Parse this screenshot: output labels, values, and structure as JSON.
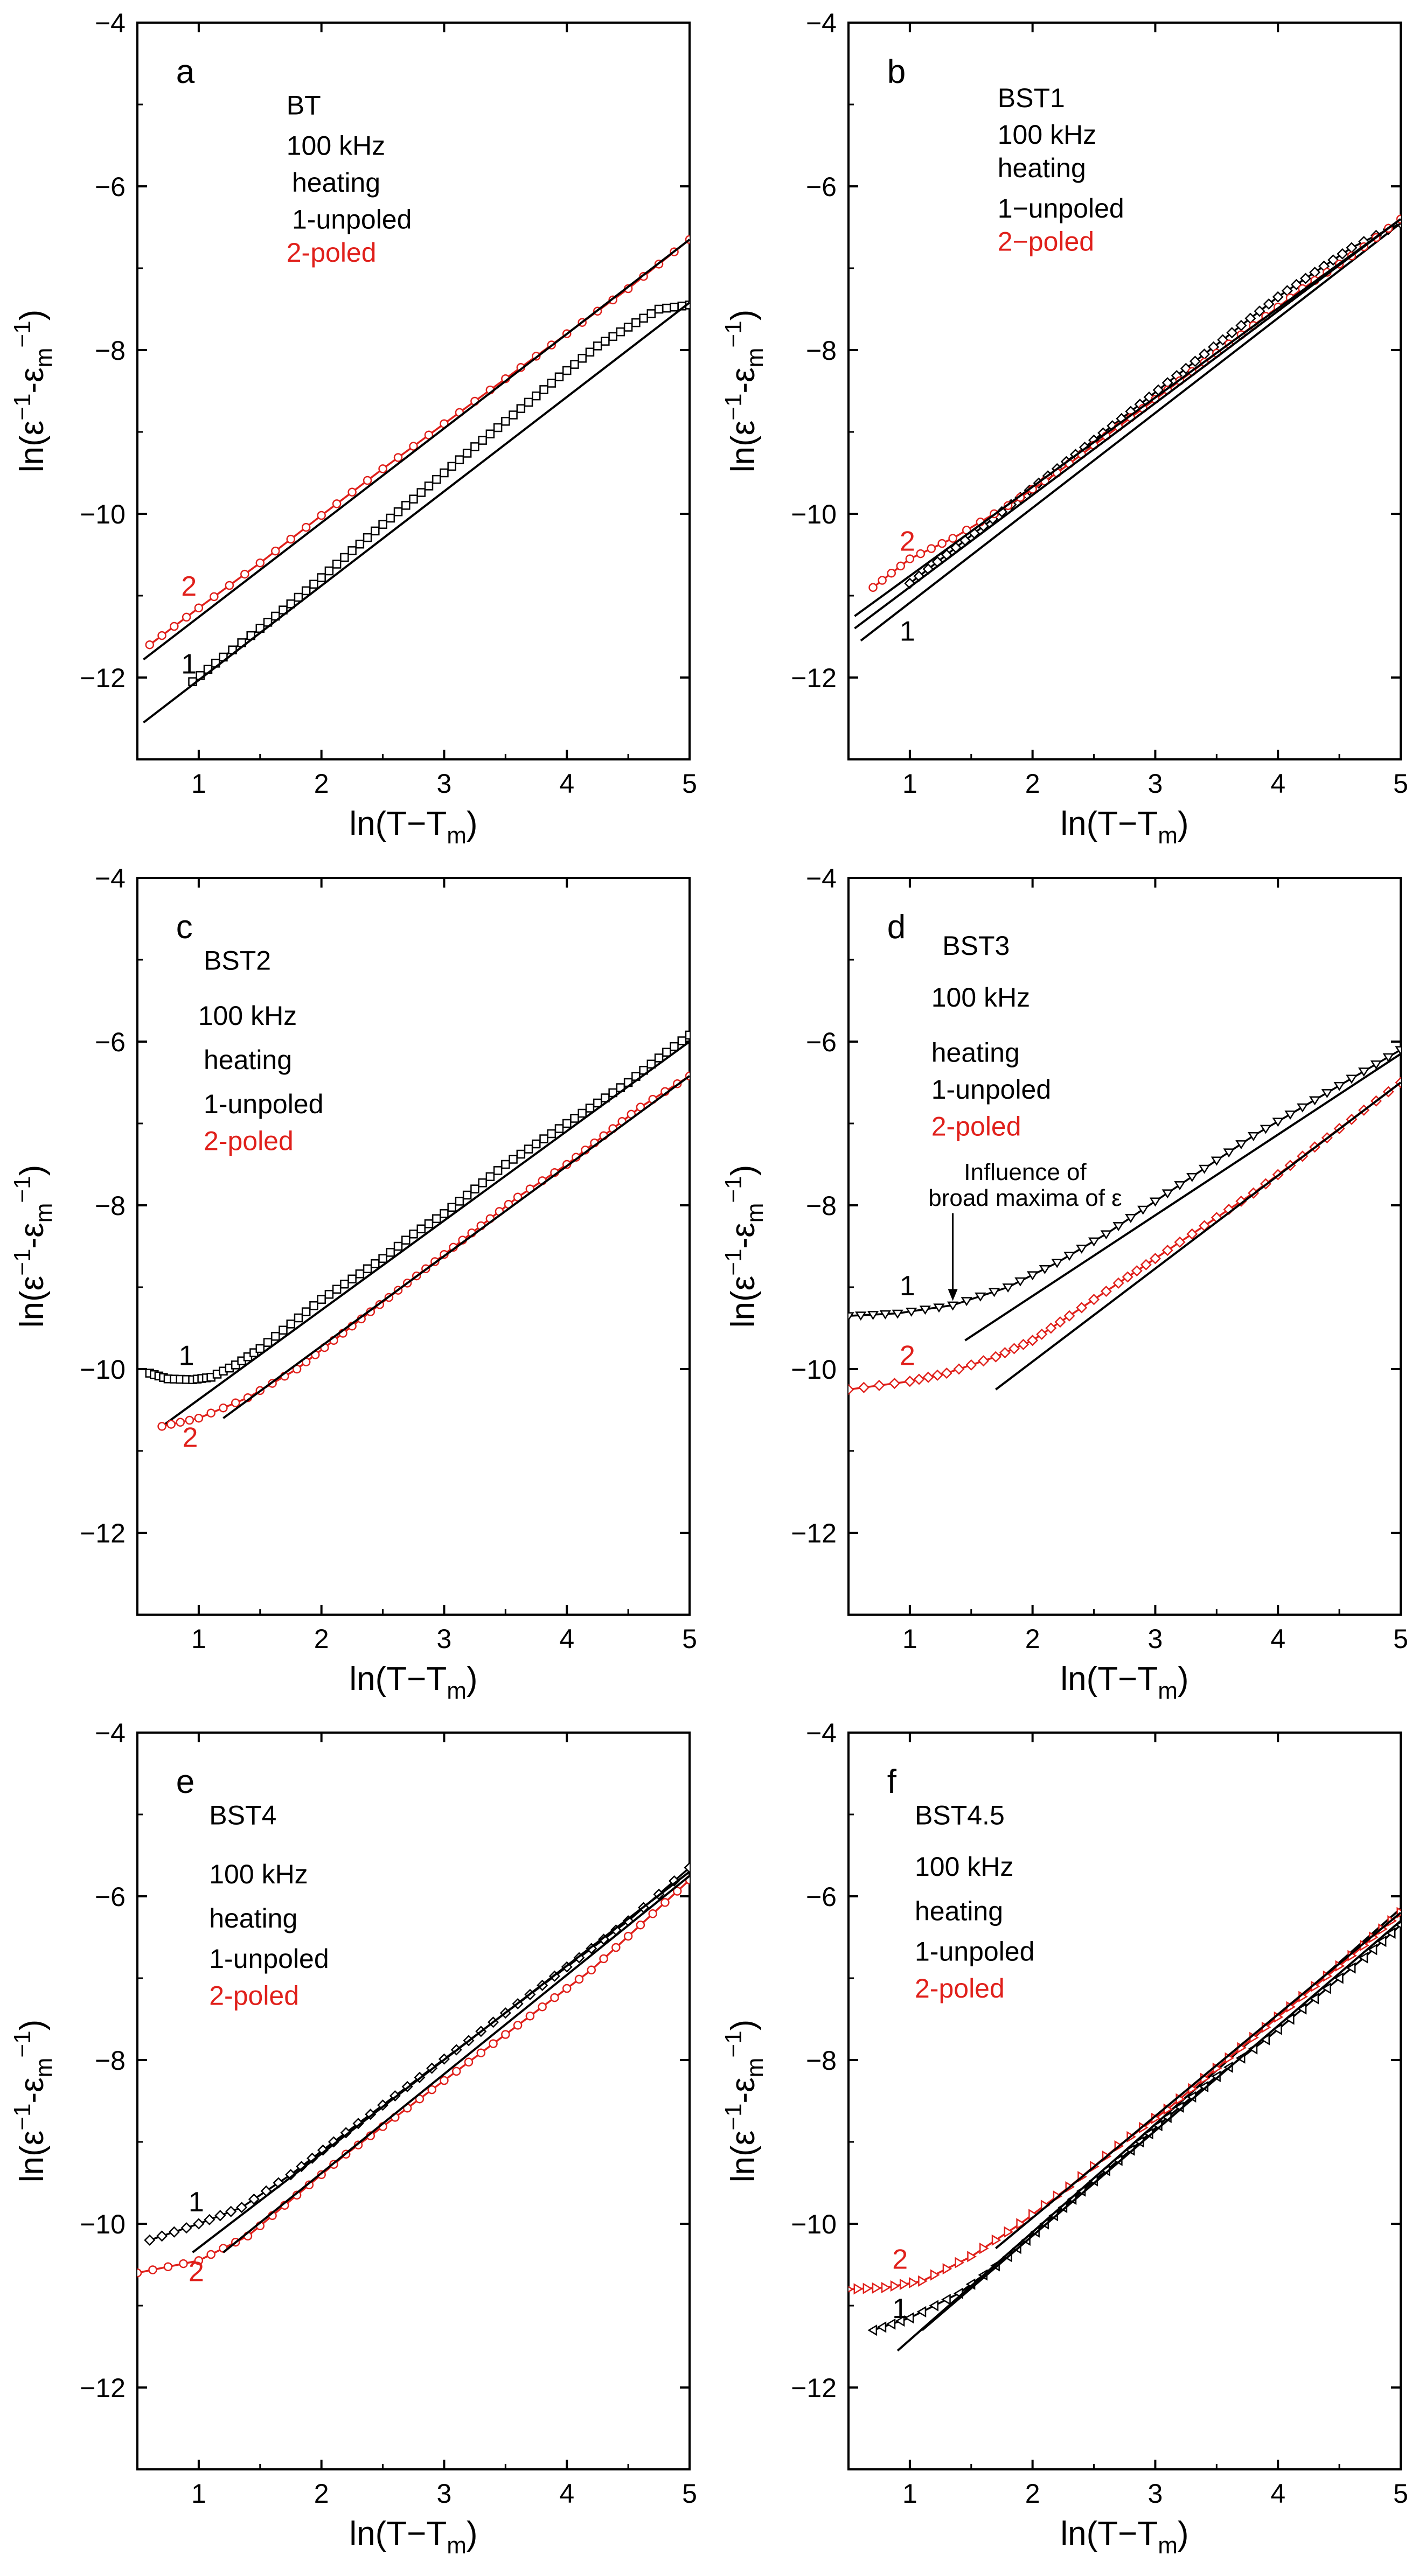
{
  "figure": {
    "y_label_main": "ln(ε",
    "y_label_sup1": "−1",
    "y_label_mid": "-ε",
    "y_label_sub": "m",
    "y_label_sup2": "−1",
    "y_label_end": ")",
    "x_label_main": "ln(T−T",
    "x_label_sub": "m",
    "x_label_end": ")",
    "colors": {
      "unpoled": "#000000",
      "poled": "#e0201b"
    }
  },
  "chart_data": [
    {
      "panel": "a",
      "type": "line",
      "sample": "BT",
      "freq": "100 kHz",
      "mode": "heating",
      "unpoled": "1-unpoled",
      "poled": "2-poled",
      "xlim": [
        0.5,
        5
      ],
      "ylim": [
        -13,
        -4
      ],
      "xticks": [
        1,
        2,
        3,
        4,
        5
      ],
      "yticks": [
        -4,
        -6,
        -8,
        -10,
        -12
      ],
      "curve_labels": [
        {
          "text": "1",
          "x": 0.92,
          "y": -11.95
        },
        {
          "text": "2",
          "x": 0.92,
          "y": -11.0
        }
      ],
      "series": [
        {
          "name": "1-unpoled",
          "color": "#000000",
          "marker": "square",
          "x": [
            0.95,
            1.2,
            1.5,
            1.75,
            2.0,
            2.25,
            2.5,
            2.75,
            3.0,
            3.25,
            3.5,
            3.75,
            4.0,
            4.25,
            4.5,
            4.75,
            5.0
          ],
          "y": [
            -12.05,
            -11.75,
            -11.4,
            -11.1,
            -10.78,
            -10.45,
            -10.13,
            -9.82,
            -9.5,
            -9.18,
            -8.87,
            -8.56,
            -8.25,
            -7.95,
            -7.72,
            -7.5,
            -7.45
          ]
        },
        {
          "name": "1-fit",
          "color": "#000000",
          "fit": true,
          "x": [
            0.55,
            5.0
          ],
          "y": [
            -12.55,
            -7.42
          ]
        },
        {
          "name": "2-poled",
          "color": "#e0201b",
          "marker": "circle",
          "x": [
            0.6,
            1.0,
            1.5,
            2.0,
            2.5,
            3.0,
            3.5,
            4.0,
            4.5,
            5.0
          ],
          "y": [
            -11.6,
            -11.15,
            -10.6,
            -10.02,
            -9.45,
            -8.9,
            -8.35,
            -7.8,
            -7.25,
            -6.65
          ]
        },
        {
          "name": "2-fit",
          "color": "#000000",
          "fit": true,
          "x": [
            0.55,
            5.0
          ],
          "y": [
            -11.78,
            -6.65
          ]
        }
      ]
    },
    {
      "panel": "b",
      "type": "line",
      "sample": "BST1",
      "freq": "100 kHz",
      "mode": "heating",
      "unpoled": "1−unpoled",
      "poled": "2−poled",
      "xlim": [
        0.5,
        5
      ],
      "ylim": [
        -13,
        -4
      ],
      "xticks": [
        1,
        2,
        3,
        4,
        5
      ],
      "yticks": [
        -4,
        -6,
        -8,
        -10,
        -12
      ],
      "curve_labels": [
        {
          "text": "1",
          "x": 0.98,
          "y": -11.55
        },
        {
          "text": "2",
          "x": 0.98,
          "y": -10.45
        }
      ],
      "series": [
        {
          "name": "1-unpoled",
          "color": "#000000",
          "marker": "diamond",
          "x": [
            1.0,
            1.3,
            1.6,
            1.9,
            2.2,
            2.5,
            2.8,
            3.1,
            3.4,
            3.7,
            4.0,
            4.3,
            4.6,
            5.0
          ],
          "y": [
            -10.85,
            -10.5,
            -10.15,
            -9.8,
            -9.45,
            -9.1,
            -8.75,
            -8.4,
            -8.05,
            -7.7,
            -7.35,
            -7.05,
            -6.75,
            -6.45
          ]
        },
        {
          "name": "1-fit",
          "color": "#000000",
          "fit": true,
          "x": [
            0.6,
            5.0
          ],
          "y": [
            -11.55,
            -6.45
          ]
        },
        {
          "name": "2-poled",
          "color": "#e0201b",
          "marker": "circle",
          "x": [
            0.7,
            1.0,
            1.35,
            1.8,
            2.2,
            2.6,
            3.0,
            3.4,
            3.8,
            4.2,
            4.6,
            5.0
          ],
          "y": [
            -10.9,
            -10.55,
            -10.3,
            -9.9,
            -9.5,
            -9.05,
            -8.6,
            -8.15,
            -7.7,
            -7.25,
            -6.85,
            -6.4
          ]
        },
        {
          "name": "2-fit",
          "color": "#000000",
          "fit": true,
          "x": [
            0.55,
            5.0
          ],
          "y": [
            -11.4,
            -6.4
          ]
        },
        {
          "name": "2-fit-b",
          "color": "#000000",
          "fit": true,
          "x": [
            0.55,
            5.0
          ],
          "y": [
            -11.25,
            -6.4
          ]
        }
      ]
    },
    {
      "panel": "c",
      "type": "line",
      "sample": "BST2",
      "freq": "100 kHz",
      "mode": "heating",
      "unpoled": "1-unpoled",
      "poled": "2-poled",
      "xlim": [
        0.5,
        5
      ],
      "ylim": [
        -13,
        -4
      ],
      "xticks": [
        1,
        2,
        3,
        4,
        5
      ],
      "yticks": [
        -4,
        -6,
        -8,
        -10,
        -12
      ],
      "curve_labels": [
        {
          "text": "1",
          "x": 0.9,
          "y": -9.95
        },
        {
          "text": "2",
          "x": 0.93,
          "y": -10.95
        }
      ],
      "series": [
        {
          "name": "1-unpoled",
          "color": "#000000",
          "marker": "square",
          "x": [
            0.6,
            0.75,
            0.95,
            1.1,
            1.3,
            1.5,
            1.75,
            2.0,
            2.25,
            2.5,
            2.75,
            3.0,
            3.25,
            3.5,
            3.75,
            4.0,
            4.25,
            4.5,
            4.75,
            5.0
          ],
          "y": [
            -10.05,
            -10.12,
            -10.13,
            -10.1,
            -9.95,
            -9.75,
            -9.45,
            -9.15,
            -8.9,
            -8.65,
            -8.35,
            -8.1,
            -7.8,
            -7.5,
            -7.25,
            -7.0,
            -6.75,
            -6.5,
            -6.2,
            -5.92
          ]
        },
        {
          "name": "1-fit",
          "color": "#000000",
          "fit": true,
          "x": [
            0.7,
            5.0
          ],
          "y": [
            -10.7,
            -6.0
          ]
        },
        {
          "name": "2-poled",
          "color": "#e0201b",
          "marker": "circle",
          "x": [
            0.7,
            1.0,
            1.4,
            1.8,
            2.1,
            2.4,
            2.7,
            3.0,
            3.3,
            3.6,
            4.0,
            4.3,
            4.6,
            5.0
          ],
          "y": [
            -10.7,
            -10.6,
            -10.35,
            -10.0,
            -9.65,
            -9.3,
            -8.95,
            -8.6,
            -8.25,
            -7.9,
            -7.5,
            -7.15,
            -6.8,
            -6.42
          ]
        },
        {
          "name": "2-fit",
          "color": "#000000",
          "fit": true,
          "x": [
            1.2,
            5.0
          ],
          "y": [
            -10.6,
            -6.42
          ]
        }
      ]
    },
    {
      "panel": "d",
      "type": "line",
      "sample": "BST3",
      "freq": "100 kHz",
      "mode": "heating",
      "unpoled": "1-unpoled",
      "poled": "2-poled",
      "annotation": "Influence of",
      "annotation2": "broad maxima of ε",
      "annotation_arrow": {
        "x": 1.35,
        "y": -9.22
      },
      "xlim": [
        0.5,
        5
      ],
      "ylim": [
        -13,
        -4
      ],
      "xticks": [
        1,
        2,
        3,
        4,
        5
      ],
      "yticks": [
        -4,
        -6,
        -8,
        -10,
        -12
      ],
      "curve_labels": [
        {
          "text": "1",
          "x": 0.98,
          "y": -9.1
        },
        {
          "text": "2",
          "x": 0.98,
          "y": -9.95
        }
      ],
      "series": [
        {
          "name": "1-unpoled",
          "color": "#000000",
          "marker": "triangle",
          "x": [
            0.5,
            0.9,
            1.35,
            1.8,
            2.2,
            2.6,
            3.0,
            3.4,
            3.8,
            4.2,
            4.6,
            5.0
          ],
          "y": [
            -9.35,
            -9.32,
            -9.22,
            -9.0,
            -8.7,
            -8.35,
            -7.95,
            -7.55,
            -7.15,
            -6.8,
            -6.45,
            -6.1
          ]
        },
        {
          "name": "1-fit",
          "color": "#000000",
          "fit": true,
          "x": [
            1.45,
            5.0
          ],
          "y": [
            -9.65,
            -6.15
          ]
        },
        {
          "name": "2-poled",
          "color": "#e0201b",
          "marker": "diamond",
          "x": [
            0.5,
            1.0,
            1.3,
            1.7,
            2.0,
            2.3,
            2.7,
            3.0,
            3.4,
            3.8,
            4.2,
            4.6,
            5.0
          ],
          "y": [
            -10.25,
            -10.15,
            -10.05,
            -9.85,
            -9.65,
            -9.35,
            -8.95,
            -8.65,
            -8.25,
            -7.85,
            -7.4,
            -6.95,
            -6.5
          ]
        },
        {
          "name": "2-fit",
          "color": "#000000",
          "fit": true,
          "x": [
            1.7,
            5.0
          ],
          "y": [
            -10.25,
            -6.5
          ]
        }
      ]
    },
    {
      "panel": "e",
      "type": "line",
      "sample": "BST4",
      "freq": "100 kHz",
      "mode": "heating",
      "unpoled": "1-unpoled",
      "poled": "2-poled",
      "xlim": [
        0.5,
        5
      ],
      "ylim": [
        -13,
        -4
      ],
      "xticks": [
        1,
        2,
        3,
        4,
        5
      ],
      "yticks": [
        -4,
        -6,
        -8,
        -10,
        -12
      ],
      "curve_labels": [
        {
          "text": "1",
          "x": 0.98,
          "y": -9.85
        },
        {
          "text": "2",
          "x": 0.98,
          "y": -10.7
        }
      ],
      "series": [
        {
          "name": "1-unpoled",
          "color": "#000000",
          "marker": "diamond",
          "x": [
            0.6,
            1.0,
            1.35,
            1.75,
            2.1,
            2.5,
            2.9,
            3.3,
            3.7,
            4.1,
            4.5,
            5.0
          ],
          "y": [
            -10.2,
            -10.0,
            -9.8,
            -9.4,
            -9.0,
            -8.55,
            -8.1,
            -7.65,
            -7.2,
            -6.75,
            -6.3,
            -5.65
          ]
        },
        {
          "name": "1-fit",
          "color": "#000000",
          "fit": true,
          "x": [
            0.95,
            5.0
          ],
          "y": [
            -10.35,
            -5.7
          ]
        },
        {
          "name": "2-poled",
          "color": "#e0201b",
          "marker": "circle",
          "x": [
            0.5,
            1.0,
            1.4,
            1.8,
            2.2,
            2.6,
            3.0,
            3.4,
            3.8,
            4.2,
            4.6,
            5.0
          ],
          "y": [
            -10.6,
            -10.45,
            -10.15,
            -9.65,
            -9.15,
            -8.7,
            -8.25,
            -7.8,
            -7.35,
            -6.9,
            -6.35,
            -5.8
          ]
        },
        {
          "name": "2-fit",
          "color": "#000000",
          "fit": true,
          "x": [
            1.2,
            5.0
          ],
          "y": [
            -10.35,
            -5.75
          ]
        }
      ]
    },
    {
      "panel": "f",
      "type": "line",
      "sample": "BST4.5",
      "freq": "100 kHz",
      "mode": "heating",
      "unpoled": "1-unpoled",
      "poled": "2-poled",
      "xlim": [
        0.5,
        5
      ],
      "ylim": [
        -13,
        -4
      ],
      "xticks": [
        1,
        2,
        3,
        4,
        5
      ],
      "yticks": [
        -4,
        -6,
        -8,
        -10,
        -12
      ],
      "curve_labels": [
        {
          "text": "1",
          "x": 0.92,
          "y": -11.15
        },
        {
          "text": "2",
          "x": 0.92,
          "y": -10.55
        }
      ],
      "series": [
        {
          "name": "1-unpoled",
          "color": "#000000",
          "marker": "triangle-left",
          "x": [
            0.7,
            1.0,
            1.4,
            1.8,
            2.1,
            2.4,
            2.8,
            3.1,
            3.5,
            3.9,
            4.3,
            4.7,
            5.0
          ],
          "y": [
            -11.3,
            -11.15,
            -10.85,
            -10.4,
            -10.0,
            -9.6,
            -9.1,
            -8.7,
            -8.2,
            -7.75,
            -7.25,
            -6.75,
            -6.35
          ]
        },
        {
          "name": "1-fit",
          "color": "#000000",
          "fit": true,
          "x": [
            0.9,
            5.0
          ],
          "y": [
            -11.55,
            -6.15
          ]
        },
        {
          "name": "1-fit-b",
          "color": "#000000",
          "fit": true,
          "x": [
            1.1,
            5.0
          ],
          "y": [
            -11.3,
            -6.3
          ]
        },
        {
          "name": "2-poled",
          "color": "#e0201b",
          "marker": "triangle-right",
          "x": [
            0.5,
            0.8,
            1.1,
            1.5,
            1.9,
            2.3,
            2.7,
            3.1,
            3.5,
            3.9,
            4.3,
            4.7,
            5.0
          ],
          "y": [
            -10.8,
            -10.78,
            -10.7,
            -10.4,
            -10.0,
            -9.55,
            -9.05,
            -8.6,
            -8.1,
            -7.6,
            -7.1,
            -6.6,
            -6.2
          ]
        },
        {
          "name": "2-fit",
          "color": "#000000",
          "fit": true,
          "x": [
            1.7,
            5.0
          ],
          "y": [
            -10.3,
            -6.2
          ]
        }
      ]
    }
  ]
}
